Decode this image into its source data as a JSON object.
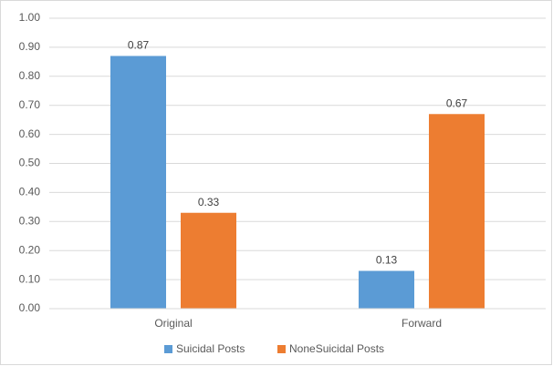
{
  "chart_data": {
    "type": "bar",
    "categories": [
      "Original",
      "Forward"
    ],
    "series": [
      {
        "name": "Suicidal Posts",
        "color": "#5b9bd5",
        "values": [
          0.87,
          0.13
        ]
      },
      {
        "name": "NoneSuicidal Posts",
        "color": "#ed7d31",
        "values": [
          0.33,
          0.67
        ]
      }
    ],
    "ylim": [
      0,
      1
    ],
    "yticks": [
      {
        "value": 0,
        "label": "0.00"
      },
      {
        "value": 0.1,
        "label": "0.10"
      },
      {
        "value": 0.2,
        "label": "0.20"
      },
      {
        "value": 0.3,
        "label": "0.30"
      },
      {
        "value": 0.4,
        "label": "0.40"
      },
      {
        "value": 0.5,
        "label": "0.50"
      },
      {
        "value": 0.6,
        "label": "0.60"
      },
      {
        "value": 0.7,
        "label": "0.70"
      },
      {
        "value": 0.8,
        "label": "0.80"
      },
      {
        "value": 0.9,
        "label": "0.90"
      },
      {
        "value": 1,
        "label": "1.00"
      }
    ],
    "grid": true,
    "legend": "bottom"
  }
}
